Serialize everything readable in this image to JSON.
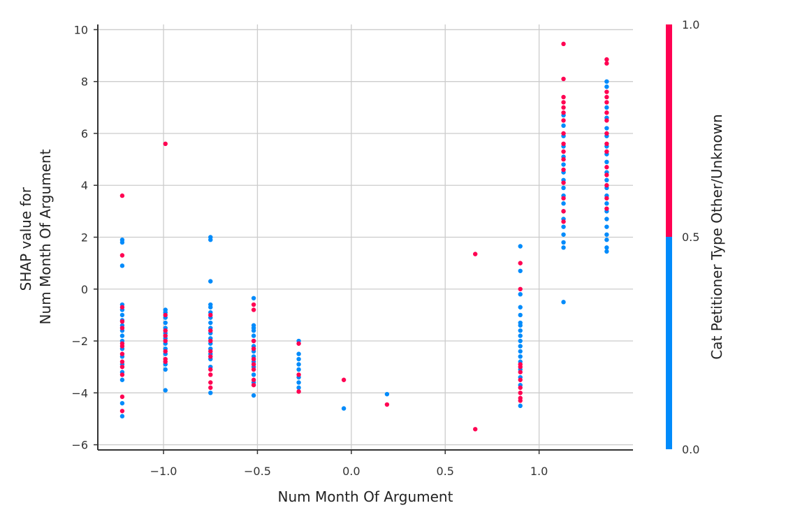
{
  "chart_data": {
    "type": "scatter",
    "title": "",
    "xlabel": "Num  Month Of Argument",
    "ylabel": [
      "SHAP value for",
      "Num  Month Of Argument"
    ],
    "xlim": [
      -1.35,
      1.5
    ],
    "ylim": [
      -6.2,
      10.2
    ],
    "x_ticks": [
      -1.0,
      -0.5,
      0.0,
      0.5,
      1.0
    ],
    "x_tick_labels": [
      "−1.0",
      "−0.5",
      "0.0",
      "0.5",
      "1.0"
    ],
    "y_ticks": [
      -6,
      -4,
      -2,
      0,
      2,
      4,
      6,
      8,
      10
    ],
    "y_tick_labels": [
      "−6",
      "−4",
      "−2",
      "0",
      "2",
      "4",
      "6",
      "8",
      "10"
    ],
    "grid": true,
    "colorbar": {
      "label": "Cat  Petitioner Type Other/Unknown",
      "ticks": [
        0.0,
        0.5,
        1.0
      ],
      "tick_labels": [
        "0.0",
        "0.5",
        "1.0"
      ],
      "low_color": "#008bfb",
      "high_color": "#ff0052"
    },
    "series": [
      {
        "color_value": 0.0,
        "points": [
          [
            -1.22,
            1.9
          ],
          [
            -1.22,
            1.8
          ],
          [
            -1.22,
            0.9
          ],
          [
            -1.22,
            -0.6
          ],
          [
            -1.22,
            -0.8
          ],
          [
            -1.22,
            -1.0
          ],
          [
            -1.22,
            -1.2
          ],
          [
            -1.22,
            -1.4
          ],
          [
            -1.22,
            -1.6
          ],
          [
            -1.22,
            -1.8
          ],
          [
            -1.22,
            -2.0
          ],
          [
            -1.22,
            -2.3
          ],
          [
            -1.22,
            -2.6
          ],
          [
            -1.22,
            -2.9
          ],
          [
            -1.22,
            -3.2
          ],
          [
            -1.22,
            -3.5
          ],
          [
            -1.22,
            -4.4
          ],
          [
            -1.22,
            -4.9
          ],
          [
            -0.99,
            -0.8
          ],
          [
            -0.99,
            -0.9
          ],
          [
            -0.99,
            -1.1
          ],
          [
            -0.99,
            -1.3
          ],
          [
            -0.99,
            -1.5
          ],
          [
            -0.99,
            -1.7
          ],
          [
            -0.99,
            -1.9
          ],
          [
            -0.99,
            -2.1
          ],
          [
            -0.99,
            -2.3
          ],
          [
            -0.99,
            -2.5
          ],
          [
            -0.99,
            -2.9
          ],
          [
            -0.99,
            -3.1
          ],
          [
            -0.99,
            -3.9
          ],
          [
            -0.75,
            2.0
          ],
          [
            -0.75,
            1.9
          ],
          [
            -0.75,
            0.3
          ],
          [
            -0.75,
            -0.6
          ],
          [
            -0.75,
            -0.7
          ],
          [
            -0.75,
            -0.9
          ],
          [
            -0.75,
            -1.1
          ],
          [
            -0.75,
            -1.3
          ],
          [
            -0.75,
            -1.5
          ],
          [
            -0.75,
            -1.7
          ],
          [
            -0.75,
            -1.9
          ],
          [
            -0.75,
            -2.1
          ],
          [
            -0.75,
            -2.3
          ],
          [
            -0.75,
            -2.5
          ],
          [
            -0.75,
            -2.7
          ],
          [
            -0.75,
            -3.0
          ],
          [
            -0.75,
            -4.0
          ],
          [
            -0.52,
            -0.35
          ],
          [
            -0.52,
            -1.4
          ],
          [
            -0.52,
            -1.5
          ],
          [
            -0.52,
            -1.6
          ],
          [
            -0.52,
            -1.8
          ],
          [
            -0.52,
            -2.0
          ],
          [
            -0.52,
            -2.2
          ],
          [
            -0.52,
            -2.4
          ],
          [
            -0.52,
            -2.6
          ],
          [
            -0.52,
            -2.8
          ],
          [
            -0.52,
            -3.0
          ],
          [
            -0.52,
            -3.3
          ],
          [
            -0.52,
            -3.6
          ],
          [
            -0.52,
            -4.1
          ],
          [
            -0.28,
            -2.0
          ],
          [
            -0.28,
            -2.5
          ],
          [
            -0.28,
            -2.7
          ],
          [
            -0.28,
            -2.9
          ],
          [
            -0.28,
            -3.1
          ],
          [
            -0.28,
            -3.4
          ],
          [
            -0.28,
            -3.6
          ],
          [
            -0.28,
            -3.8
          ],
          [
            -0.04,
            -4.6
          ],
          [
            0.19,
            -4.05
          ],
          [
            0.9,
            1.65
          ],
          [
            0.9,
            0.7
          ],
          [
            0.9,
            -0.2
          ],
          [
            0.9,
            -0.7
          ],
          [
            0.9,
            -1.0
          ],
          [
            0.9,
            -1.3
          ],
          [
            0.9,
            -1.4
          ],
          [
            0.9,
            -1.6
          ],
          [
            0.9,
            -1.8
          ],
          [
            0.9,
            -2.0
          ],
          [
            0.9,
            -2.2
          ],
          [
            0.9,
            -2.4
          ],
          [
            0.9,
            -2.6
          ],
          [
            0.9,
            -2.8
          ],
          [
            0.9,
            -3.1
          ],
          [
            0.9,
            -3.4
          ],
          [
            0.9,
            -3.7
          ],
          [
            0.9,
            -4.5
          ],
          [
            1.13,
            6.7
          ],
          [
            1.13,
            6.3
          ],
          [
            1.13,
            5.9
          ],
          [
            1.13,
            5.5
          ],
          [
            1.13,
            5.1
          ],
          [
            1.13,
            4.8
          ],
          [
            1.13,
            4.5
          ],
          [
            1.13,
            4.2
          ],
          [
            1.13,
            3.9
          ],
          [
            1.13,
            3.6
          ],
          [
            1.13,
            3.3
          ],
          [
            1.13,
            3.0
          ],
          [
            1.13,
            2.7
          ],
          [
            1.13,
            2.4
          ],
          [
            1.13,
            2.1
          ],
          [
            1.13,
            1.8
          ],
          [
            1.13,
            1.6
          ],
          [
            1.13,
            -0.5
          ],
          [
            1.36,
            8.0
          ],
          [
            1.36,
            7.8
          ],
          [
            1.36,
            7.0
          ],
          [
            1.36,
            6.6
          ],
          [
            1.36,
            6.2
          ],
          [
            1.36,
            5.9
          ],
          [
            1.36,
            5.5
          ],
          [
            1.36,
            5.2
          ],
          [
            1.36,
            4.9
          ],
          [
            1.36,
            4.5
          ],
          [
            1.36,
            4.2
          ],
          [
            1.36,
            3.9
          ],
          [
            1.36,
            3.6
          ],
          [
            1.36,
            3.3
          ],
          [
            1.36,
            3.0
          ],
          [
            1.36,
            2.7
          ],
          [
            1.36,
            2.4
          ],
          [
            1.36,
            2.1
          ],
          [
            1.36,
            1.9
          ],
          [
            1.36,
            1.6
          ],
          [
            1.36,
            1.45
          ]
        ]
      },
      {
        "color_value": 1.0,
        "points": [
          [
            -1.22,
            3.6
          ],
          [
            -1.22,
            1.3
          ],
          [
            -1.22,
            -0.7
          ],
          [
            -1.22,
            -1.25
          ],
          [
            -1.22,
            -1.5
          ],
          [
            -1.22,
            -2.1
          ],
          [
            -1.22,
            -2.2
          ],
          [
            -1.22,
            -2.5
          ],
          [
            -1.22,
            -2.8
          ],
          [
            -1.22,
            -3.0
          ],
          [
            -1.22,
            -3.3
          ],
          [
            -1.22,
            -4.15
          ],
          [
            -1.22,
            -4.7
          ],
          [
            -0.99,
            5.6
          ],
          [
            -0.99,
            -1.0
          ],
          [
            -0.99,
            -1.6
          ],
          [
            -0.99,
            -1.8
          ],
          [
            -0.99,
            -2.0
          ],
          [
            -0.99,
            -2.4
          ],
          [
            -0.99,
            -2.7
          ],
          [
            -0.99,
            -2.8
          ],
          [
            -0.75,
            -1.0
          ],
          [
            -0.75,
            -1.6
          ],
          [
            -0.75,
            -2.0
          ],
          [
            -0.75,
            -2.4
          ],
          [
            -0.75,
            -2.6
          ],
          [
            -0.75,
            -3.1
          ],
          [
            -0.75,
            -3.3
          ],
          [
            -0.75,
            -3.6
          ],
          [
            -0.75,
            -3.8
          ],
          [
            -0.52,
            -0.6
          ],
          [
            -0.52,
            -0.8
          ],
          [
            -0.52,
            -2.0
          ],
          [
            -0.52,
            -2.3
          ],
          [
            -0.52,
            -2.7
          ],
          [
            -0.52,
            -2.9
          ],
          [
            -0.52,
            -3.1
          ],
          [
            -0.52,
            -3.5
          ],
          [
            -0.52,
            -3.7
          ],
          [
            -0.28,
            -2.1
          ],
          [
            -0.28,
            -3.3
          ],
          [
            -0.28,
            -3.95
          ],
          [
            -0.04,
            -3.5
          ],
          [
            0.19,
            -4.45
          ],
          [
            0.66,
            1.35
          ],
          [
            0.66,
            -5.4
          ],
          [
            0.9,
            1.0
          ],
          [
            0.9,
            0.0
          ],
          [
            0.9,
            -2.9
          ],
          [
            0.9,
            -3.0
          ],
          [
            0.9,
            -3.2
          ],
          [
            0.9,
            -3.5
          ],
          [
            0.9,
            -3.8
          ],
          [
            0.9,
            -4.0
          ],
          [
            0.9,
            -4.2
          ],
          [
            0.9,
            -4.3
          ],
          [
            1.13,
            9.45
          ],
          [
            1.13,
            8.1
          ],
          [
            1.13,
            7.4
          ],
          [
            1.13,
            7.2
          ],
          [
            1.13,
            7.0
          ],
          [
            1.13,
            6.8
          ],
          [
            1.13,
            6.5
          ],
          [
            1.13,
            6.0
          ],
          [
            1.13,
            5.6
          ],
          [
            1.13,
            5.3
          ],
          [
            1.13,
            5.0
          ],
          [
            1.13,
            4.6
          ],
          [
            1.13,
            4.1
          ],
          [
            1.13,
            3.5
          ],
          [
            1.13,
            3.0
          ],
          [
            1.13,
            2.6
          ],
          [
            1.36,
            8.85
          ],
          [
            1.36,
            8.7
          ],
          [
            1.36,
            7.6
          ],
          [
            1.36,
            7.4
          ],
          [
            1.36,
            7.2
          ],
          [
            1.36,
            6.8
          ],
          [
            1.36,
            6.5
          ],
          [
            1.36,
            6.0
          ],
          [
            1.36,
            5.6
          ],
          [
            1.36,
            5.3
          ],
          [
            1.36,
            4.7
          ],
          [
            1.36,
            4.4
          ],
          [
            1.36,
            4.0
          ],
          [
            1.36,
            3.5
          ],
          [
            1.36,
            3.1
          ]
        ]
      }
    ]
  }
}
